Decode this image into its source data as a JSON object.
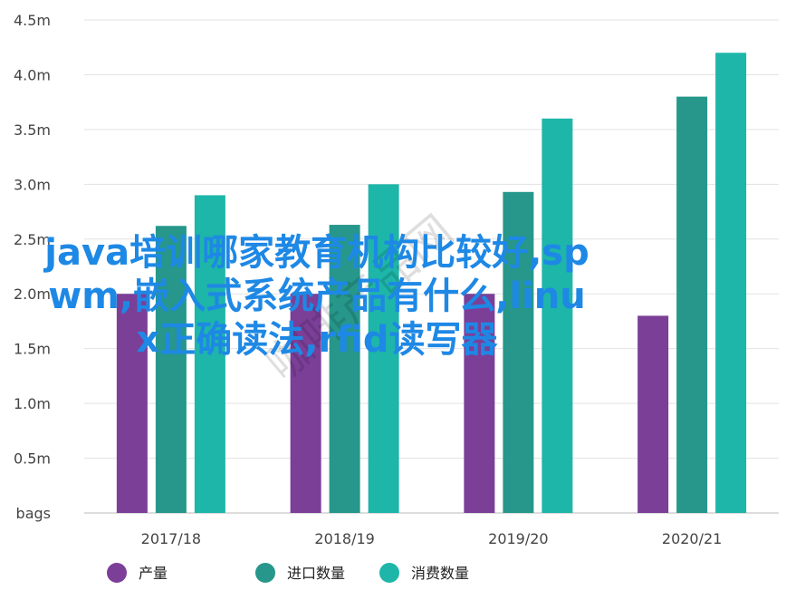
{
  "chart_data": {
    "type": "bar",
    "categories": [
      "2017/18",
      "2018/19",
      "2019/20",
      "2020/21"
    ],
    "series": [
      {
        "name": "产量",
        "color": "#7b3f98",
        "values": [
          2.0,
          2.0,
          2.0,
          1.8
        ]
      },
      {
        "name": "进口数量",
        "color": "#26978a",
        "values": [
          2.62,
          2.63,
          2.93,
          3.8
        ]
      },
      {
        "name": "消费数量",
        "color": "#1db6a9",
        "values": [
          2.9,
          3.0,
          3.6,
          4.2
        ]
      }
    ],
    "y_ticks": [
      "bags",
      "0.5m",
      "1.0m",
      "1.5m",
      "2.0m",
      "2.5m",
      "3.0m",
      "3.5m",
      "4.0m",
      "4.5m"
    ],
    "ylim": [
      0,
      4.5
    ],
    "grid": true,
    "legend_position": "bottom"
  },
  "overlay_text": "java培训哪家教育机构比较好,sp\nwm,嵌入式系统产品有什么,linu\nx正确读法,rfid读写器",
  "watermark_text": "咖啡产品网"
}
